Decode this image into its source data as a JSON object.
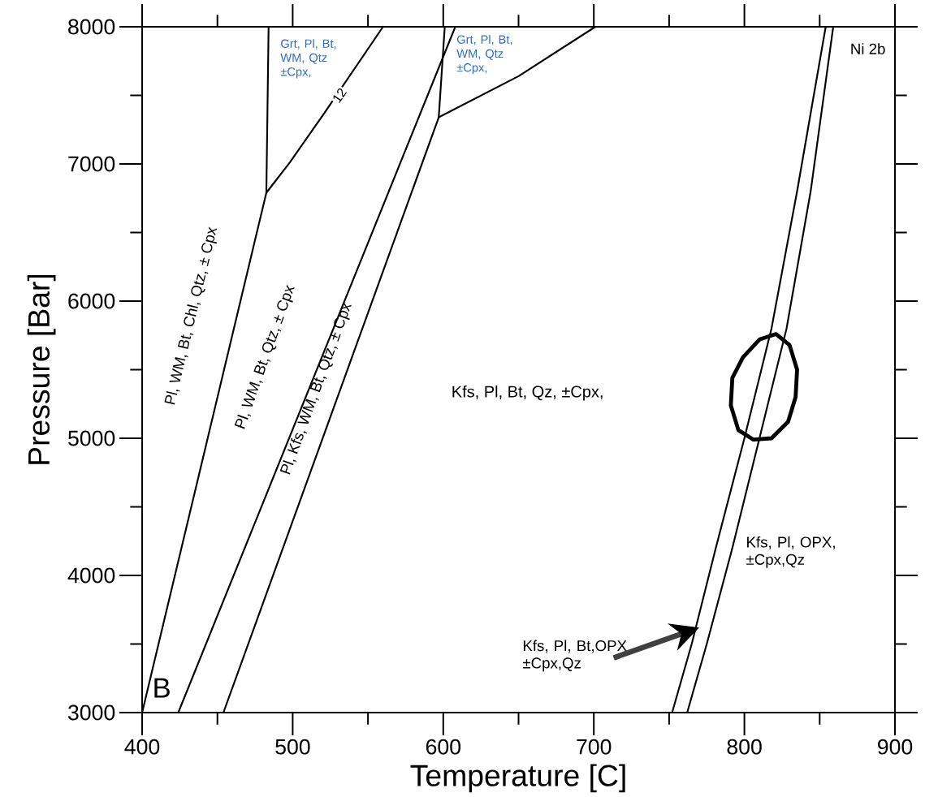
{
  "chart_data": {
    "type": "line",
    "xlabel": "Temperature [C]",
    "ylabel": "Pressure [Bar]",
    "xlim": [
      400,
      900
    ],
    "ylim": [
      3000,
      8000
    ],
    "xticks": [
      400,
      {
        "value": 450,
        "label": null
      },
      500,
      {
        "value": 550,
        "label": null
      },
      600,
      {
        "value": 650,
        "label": null
      },
      700,
      {
        "value": 750,
        "label": null
      },
      800,
      {
        "value": 850,
        "label": null
      },
      900
    ],
    "yticks": [
      3000,
      {
        "value": 3500,
        "label": null
      },
      4000,
      {
        "value": 4500,
        "label": null
      },
      5000,
      {
        "value": 5500,
        "label": null
      },
      6000,
      {
        "value": 6500,
        "label": null
      },
      7000,
      {
        "value": 7500,
        "label": null
      },
      8000
    ],
    "grid": false,
    "marker": "none",
    "line_style": "solid",
    "series": [
      {
        "color": "#000000",
        "x": [
          400,
          482.5,
          484
        ],
        "values": [
          3000,
          6790,
          8000
        ]
      },
      {
        "color": "#000000",
        "x": [
          482.5,
          498,
          521,
          560
        ],
        "values": [
          6790,
          7010,
          7370,
          8000
        ]
      },
      {
        "color": "#000000",
        "x": [
          424,
          608
        ],
        "values": [
          3000,
          8000
        ]
      },
      {
        "color": "#000000",
        "x": [
          454,
          597,
          601
        ],
        "values": [
          3000,
          7340,
          8000
        ]
      },
      {
        "color": "#000000",
        "x": [
          597,
          650,
          701
        ],
        "values": [
          7340,
          7640,
          8000
        ]
      },
      {
        "color": "#000000",
        "x": [
          752,
          765,
          781,
          800,
          818,
          835,
          854
        ],
        "values": [
          3000,
          3500,
          4200,
          5000,
          5800,
          6800,
          8000
        ]
      },
      {
        "color": "#000000",
        "x": [
          762,
          775,
          792,
          810,
          828,
          844,
          859
        ],
        "values": [
          3000,
          3500,
          4200,
          5000,
          5800,
          6800,
          8000
        ]
      },
      {
        "color": "#000000",
        "x": [
          791,
          792,
          799,
          810,
          821,
          830,
          835,
          null,
          791,
          796,
          806,
          818,
          829,
          834,
          835
        ],
        "values": [
          5240,
          5440,
          5590,
          5720,
          5760,
          5680,
          5500,
          null,
          5240,
          5060,
          4990,
          5000,
          5120,
          5300,
          5500
        ]
      }
    ],
    "annotations": [
      "Grt, Pl, Bt, WM, Qtz ±Cpx,",
      "Grt, Pl, Bt, WM, Qtz ±Cpx,",
      "12",
      "Pl, WM, Bt, Chl, Qtz, ± Cpx",
      "Pl, WM, Bt, Qtz, ± Cpx",
      "Pl, Kfs, WM, Bt, Qtz, ± Cpx",
      "Kfs, Pl, Bt, Qz, ±Cpx,",
      "Kfs, Pl, OPX, ±Cpx,Qz",
      "Kfs, Pl, Bt,OPX ±Cpx,Qz",
      "B",
      "Ni 2b"
    ]
  }
}
